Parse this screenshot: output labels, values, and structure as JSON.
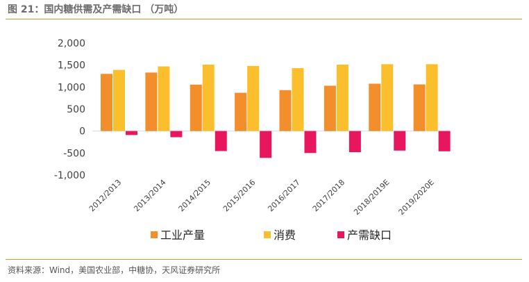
{
  "figure_title": "图 21：国内糖供需及产需缺口 （万吨）",
  "source_note": "资料来源：Wind，美国农业部，中糖协，天风证券研究所",
  "chart_data": {
    "type": "bar",
    "title": "国内糖供需及产需缺口",
    "unit": "万吨",
    "categories": [
      "2012/2013",
      "2013/2014",
      "2014/2015",
      "2015/2016",
      "2016/2017",
      "2017/2018",
      "2018/2019E",
      "2019/2020E"
    ],
    "series": [
      {
        "name": "工业产量",
        "color": "#f28e2b",
        "values": [
          1300,
          1330,
          1055,
          870,
          930,
          1030,
          1076,
          1060
        ]
      },
      {
        "name": "消费",
        "color": "#fbbf2d",
        "values": [
          1390,
          1470,
          1510,
          1480,
          1430,
          1510,
          1520,
          1520
        ]
      },
      {
        "name": "产需缺口",
        "color": "#e8175d",
        "values": [
          -90,
          -140,
          -455,
          -610,
          -500,
          -480,
          -444,
          -460
        ]
      }
    ],
    "yticks": [
      2000,
      1500,
      1000,
      500,
      0,
      -500,
      -1000
    ],
    "ytick_labels": [
      "2,000",
      "1,500",
      "1,000",
      "500",
      "0",
      "-500",
      "-1,000"
    ],
    "ylim": [
      -1000,
      2000
    ],
    "legend_position": "bottom"
  }
}
